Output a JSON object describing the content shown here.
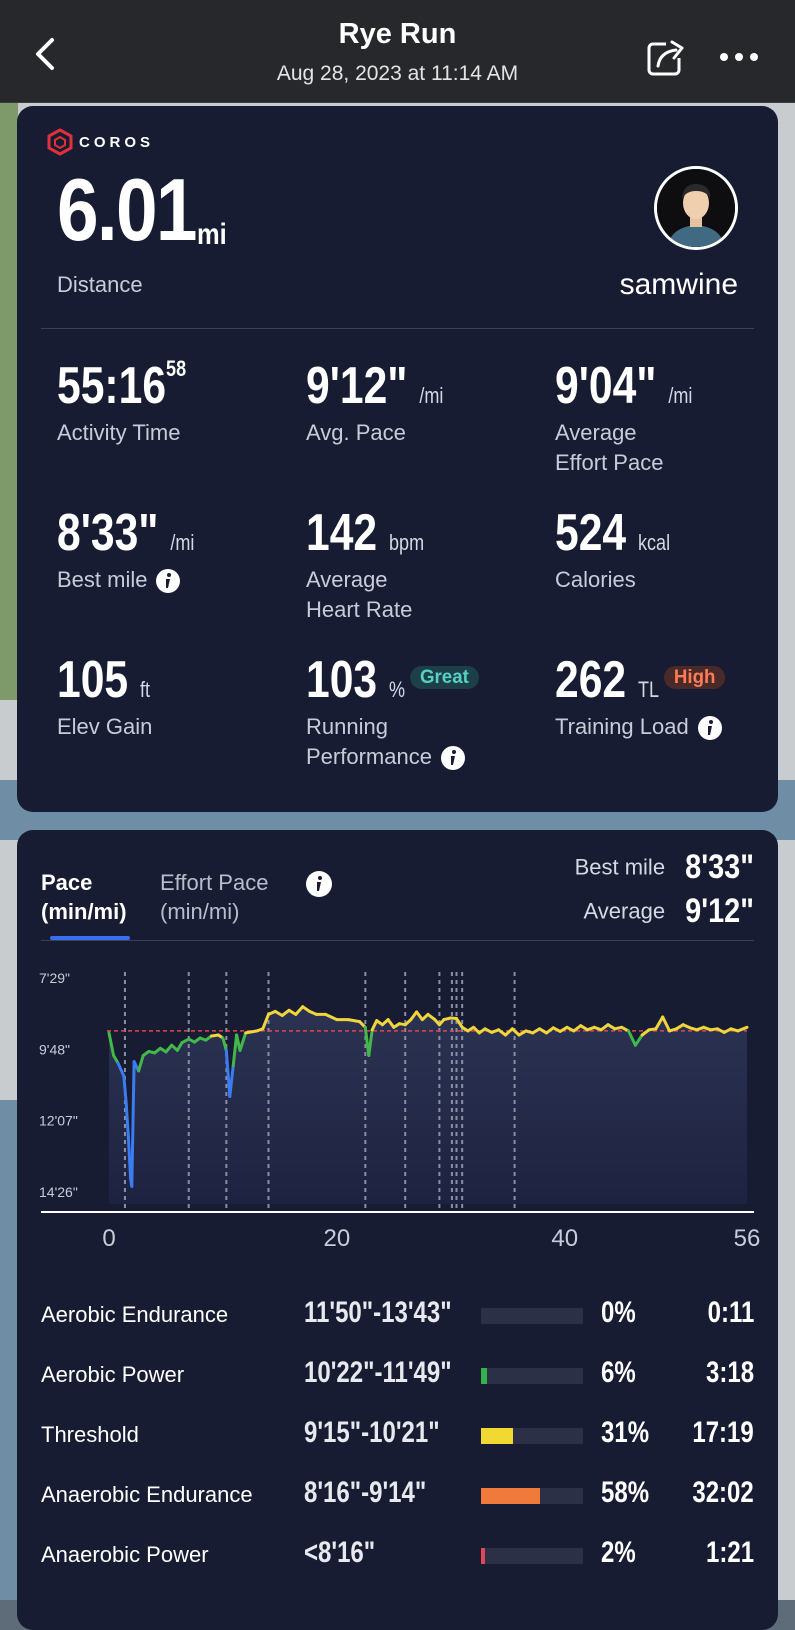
{
  "header": {
    "title": "Rye Run",
    "subtitle": "Aug 28, 2023 at 11:14 AM"
  },
  "summary": {
    "brand": "COROS",
    "distance": {
      "value": "6.01",
      "unit": "mi",
      "label": "Distance"
    },
    "username": "samwine"
  },
  "stats": {
    "activity_time": {
      "value": "55:16",
      "sup": "58",
      "label": "Activity Time"
    },
    "avg_pace": {
      "value": "9'12\"",
      "unit": "/mi",
      "label": "Avg. Pace"
    },
    "effort_pace": {
      "value": "9'04\"",
      "unit": "/mi",
      "label1": "Average",
      "label2": "Effort Pace"
    },
    "best_mile": {
      "value": "8'33\"",
      "unit": "/mi",
      "label": "Best mile"
    },
    "heart_rate": {
      "value": "142",
      "unit": "bpm",
      "label1": "Average",
      "label2": "Heart Rate"
    },
    "calories": {
      "value": "524",
      "unit": "kcal",
      "label": "Calories"
    },
    "elev_gain": {
      "value": "105",
      "unit": "ft",
      "label": "Elev Gain"
    },
    "running_performance": {
      "value": "103",
      "unit": "%",
      "badge": "Great",
      "label1": "Running",
      "label2": "Performance"
    },
    "training_load": {
      "value": "262",
      "unit": "TL",
      "badge": "High",
      "label": "Training Load"
    }
  },
  "pace_card": {
    "tab_active_line1": "Pace",
    "tab_active_line2": "(min/mi)",
    "tab_inactive_line1": "Effort Pace",
    "tab_inactive_line2": "(min/mi)",
    "best_mile_label": "Best mile",
    "best_mile_value": "8'33\"",
    "average_label": "Average",
    "average_value": "9'12\""
  },
  "chart_data": {
    "type": "line",
    "title": "",
    "xlabel": "",
    "ylabel": "",
    "y_tick_labels": [
      "7'29\"",
      "9'48\"",
      "12'07\"",
      "14'26\""
    ],
    "y_tick_values_sec": [
      449,
      588,
      727,
      866
    ],
    "x_tick_labels": [
      "0",
      "20",
      "40",
      "56"
    ],
    "x_tick_values": [
      0,
      20,
      40,
      56
    ],
    "xlim": [
      0,
      56
    ],
    "ylim_sec": [
      449,
      866
    ],
    "y_inverted": true,
    "reference_line": {
      "label": "Average",
      "value_sec": 552,
      "color": "#e0454f"
    },
    "lap_markers": [
      1.4,
      7.0,
      10.3,
      14.0,
      22.5,
      26.0,
      29.0,
      30.1,
      30.5,
      31.0,
      35.6
    ],
    "series": [
      {
        "values": [
          [
            0.0,
            556
          ],
          [
            0.4,
            600
          ],
          [
            0.8,
            615
          ],
          [
            1.3,
            640
          ],
          [
            1.5,
            690
          ],
          [
            1.7,
            760
          ],
          [
            1.9,
            840
          ],
          [
            2.0,
            855
          ],
          [
            2.2,
            612
          ],
          [
            2.6,
            630
          ],
          [
            3.0,
            600
          ],
          [
            3.5,
            592
          ],
          [
            4.0,
            595
          ],
          [
            4.5,
            586
          ],
          [
            5.0,
            593
          ],
          [
            5.5,
            580
          ],
          [
            6.0,
            590
          ],
          [
            6.4,
            575
          ],
          [
            7.0,
            568
          ],
          [
            7.5,
            574
          ],
          [
            8.0,
            566
          ],
          [
            8.5,
            570
          ],
          [
            9.0,
            562
          ],
          [
            9.6,
            560
          ],
          [
            10.0,
            566
          ],
          [
            10.3,
            590
          ],
          [
            10.6,
            680
          ],
          [
            10.9,
            620
          ],
          [
            11.2,
            560
          ],
          [
            11.5,
            590
          ],
          [
            12.0,
            556
          ],
          [
            12.5,
            554
          ],
          [
            13.0,
            552
          ],
          [
            13.5,
            548
          ],
          [
            14.0,
            520
          ],
          [
            14.6,
            514
          ],
          [
            15.2,
            522
          ],
          [
            15.8,
            512
          ],
          [
            16.4,
            520
          ],
          [
            17.0,
            505
          ],
          [
            17.6,
            514
          ],
          [
            18.2,
            520
          ],
          [
            19.0,
            520
          ],
          [
            20.0,
            530
          ],
          [
            21.0,
            530
          ],
          [
            22.0,
            534
          ],
          [
            22.5,
            545
          ],
          [
            22.8,
            600
          ],
          [
            23.1,
            550
          ],
          [
            23.5,
            532
          ],
          [
            24.0,
            540
          ],
          [
            24.5,
            530
          ],
          [
            25.0,
            545
          ],
          [
            25.5,
            538
          ],
          [
            26.0,
            540
          ],
          [
            26.5,
            530
          ],
          [
            27.0,
            515
          ],
          [
            27.5,
            530
          ],
          [
            28.0,
            520
          ],
          [
            28.6,
            530
          ],
          [
            29.0,
            540
          ],
          [
            29.4,
            530
          ],
          [
            30.0,
            527
          ],
          [
            30.5,
            528
          ],
          [
            31.0,
            545
          ],
          [
            31.5,
            552
          ],
          [
            32.0,
            545
          ],
          [
            32.5,
            556
          ],
          [
            33.0,
            548
          ],
          [
            33.6,
            555
          ],
          [
            34.2,
            550
          ],
          [
            34.8,
            560
          ],
          [
            35.4,
            548
          ],
          [
            36.0,
            560
          ],
          [
            36.6,
            552
          ],
          [
            37.2,
            556
          ],
          [
            37.8,
            548
          ],
          [
            38.4,
            556
          ],
          [
            39.0,
            546
          ],
          [
            39.6,
            553
          ],
          [
            40.2,
            545
          ],
          [
            40.8,
            552
          ],
          [
            41.4,
            542
          ],
          [
            42.0,
            550
          ],
          [
            42.6,
            545
          ],
          [
            43.2,
            550
          ],
          [
            43.8,
            540
          ],
          [
            44.4,
            548
          ],
          [
            45.0,
            545
          ],
          [
            45.6,
            552
          ],
          [
            46.2,
            580
          ],
          [
            46.8,
            560
          ],
          [
            47.4,
            550
          ],
          [
            48.0,
            548
          ],
          [
            48.6,
            525
          ],
          [
            49.2,
            552
          ],
          [
            49.8,
            548
          ],
          [
            50.4,
            540
          ],
          [
            51.0,
            546
          ],
          [
            51.6,
            550
          ],
          [
            52.2,
            545
          ],
          [
            52.8,
            550
          ],
          [
            53.4,
            548
          ],
          [
            54.0,
            555
          ],
          [
            54.6,
            548
          ],
          [
            55.2,
            552
          ],
          [
            56.0,
            545
          ]
        ]
      }
    ],
    "grid": false,
    "colors": {
      "fast": "#f0d63a",
      "moderate": "#43b84a",
      "slow": "#3b7cf0"
    }
  },
  "zones": [
    {
      "name": "Aerobic Endurance",
      "range": "11'50\"-13'43\"",
      "percent": "0%",
      "fraction": 0.0,
      "time": "0:11",
      "color": "#2b3046"
    },
    {
      "name": "Aerobic Power",
      "range": "10'22\"-11'49\"",
      "percent": "6%",
      "fraction": 0.06,
      "time": "3:18",
      "color": "#36b24a"
    },
    {
      "name": "Threshold",
      "range": "9'15\"-10'21\"",
      "percent": "31%",
      "fraction": 0.31,
      "time": "17:19",
      "color": "#f2d833"
    },
    {
      "name": "Anaerobic Endurance",
      "range": "8'16\"-9'14\"",
      "percent": "58%",
      "fraction": 0.58,
      "time": "32:02",
      "color": "#f07a3c"
    },
    {
      "name": "Anaerobic Power",
      "range": "<8'16\"",
      "percent": "2%",
      "fraction": 0.02,
      "time": "1:21",
      "color": "#e04654"
    }
  ]
}
